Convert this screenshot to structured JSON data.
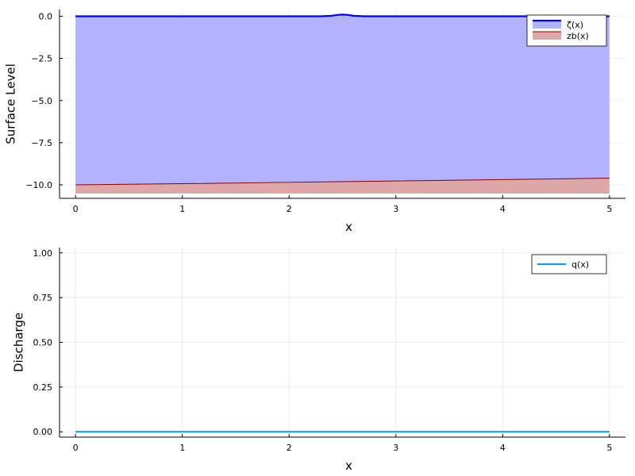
{
  "chart_data": [
    {
      "type": "area",
      "xlabel": "x",
      "ylabel": "Surface Level",
      "xlim": [
        -0.15,
        5.15
      ],
      "ylim": [
        -10.8,
        0.4
      ],
      "xticks": [
        0,
        1,
        2,
        3,
        4,
        5
      ],
      "xtick_labels": [
        "0",
        "1",
        "2",
        "3",
        "4",
        "5"
      ],
      "yticks": [
        0,
        -2.5,
        -5,
        -7.5,
        -10
      ],
      "ytick_labels": [
        "0.0",
        "−2.5",
        "−5.0",
        "−7.5",
        "−10.0"
      ],
      "grid": true,
      "legend_position": "top-right",
      "series": [
        {
          "name": "ζ(x)",
          "color": "#0000ff",
          "fill_color": "#b2b2ff",
          "x": [
            0,
            2.3,
            2.4,
            2.45,
            2.5,
            2.55,
            2.6,
            2.7,
            5
          ],
          "values": [
            0,
            0,
            0.03,
            0.08,
            0.1,
            0.08,
            0.03,
            0,
            0
          ]
        },
        {
          "name": "zb(x)",
          "color": "#8b0000",
          "fill_color": "#dea8a8",
          "x": [
            0,
            1,
            2,
            3,
            4,
            5
          ],
          "values": [
            -10.0,
            -9.93,
            -9.85,
            -9.77,
            -9.69,
            -9.6
          ]
        }
      ]
    },
    {
      "type": "line",
      "xlabel": "x",
      "ylabel": "Discharge",
      "xlim": [
        -0.15,
        5.15
      ],
      "ylim": [
        -0.03,
        1.03
      ],
      "xticks": [
        0,
        1,
        2,
        3,
        4,
        5
      ],
      "xtick_labels": [
        "0",
        "1",
        "2",
        "3",
        "4",
        "5"
      ],
      "yticks": [
        0,
        0.25,
        0.5,
        0.75,
        1.0
      ],
      "ytick_labels": [
        "0.00",
        "0.25",
        "0.50",
        "0.75",
        "1.00"
      ],
      "grid": true,
      "legend_position": "top-right",
      "series": [
        {
          "name": "q(x)",
          "color": "#009af9",
          "x": [
            0,
            5
          ],
          "values": [
            0,
            0
          ]
        }
      ]
    }
  ]
}
